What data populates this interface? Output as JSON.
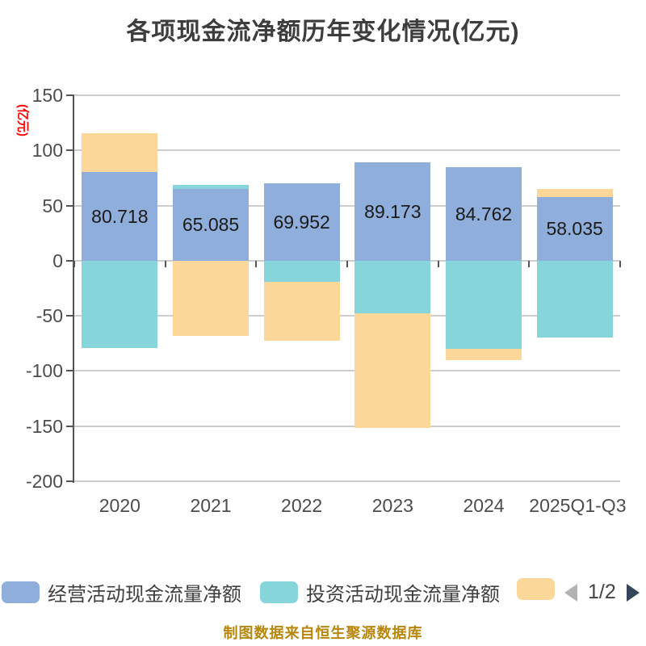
{
  "title": "各项现金流净额历年变化情况(亿元)",
  "y_axis_name": "(亿元)",
  "footer": "制图数据来自恒生聚源数据库",
  "legend": {
    "items": [
      {
        "label": "经营活动现金流量净额",
        "color": "#8FAEDB"
      },
      {
        "label": "投资活动现金流量净额",
        "color": "#85D5DA"
      },
      {
        "label": "",
        "color": "#FCD79A"
      }
    ],
    "pager": "1/2",
    "pager_prev_color": "#B3B3B3",
    "pager_next_color": "#36465A"
  },
  "chart_data": {
    "type": "bar",
    "stacked": true,
    "title": "各项现金流净额历年变化情况(亿元)",
    "categories": [
      "2020",
      "2021",
      "2022",
      "2023",
      "2024",
      "2025Q1-Q3"
    ],
    "series": [
      {
        "name": "经营活动现金流量净额",
        "color": "#8FAEDB",
        "values": [
          80.718,
          65.085,
          69.952,
          89.173,
          84.762,
          58.035
        ]
      },
      {
        "name": "投资活动现金流量净额",
        "color": "#85D5DA",
        "values": [
          -79,
          3.6,
          -19,
          -48,
          -80,
          -70
        ]
      },
      {
        "name": "",
        "color": "#FCD79A",
        "values": [
          35,
          -68.5,
          -53.5,
          -104,
          -10.5,
          7
        ]
      }
    ],
    "value_labels": [
      "80.718",
      "65.085",
      "69.952",
      "89.173",
      "84.762",
      "58.035"
    ],
    "ylabel": "(亿元)",
    "ylim": [
      -200,
      150
    ],
    "ytick_interval": 50,
    "grid": "horizontal",
    "legend_position": "bottom"
  },
  "colors": {
    "title_text": "#3D3D3D",
    "axis_text": "#4C4C4C",
    "bar_label_text": "#1A1A1A",
    "grid_line": "#CDCDCD",
    "axis_line": "#555555",
    "y_axis_name": "#FF0000",
    "footer_text": "#B8860B",
    "background": "#FFFFFF"
  }
}
